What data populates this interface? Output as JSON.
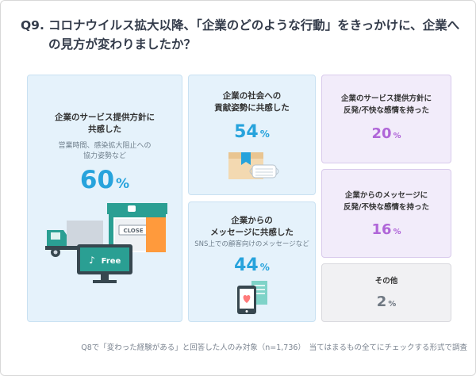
{
  "question": {
    "number": "Q9.",
    "line1": "コロナウイルス拡大以降、「企業のどのような行動」をきっかけに、企業へ",
    "line2": "の見方が変わりましたか？"
  },
  "footnote": "Q8で「変わった経験がある」と回答した人のみ対象（n=1,736）　当てはまるもの全てにチェックする形式で調査",
  "illustration": {
    "sign_closed": "CLOSE",
    "screen_free": "Free"
  },
  "chart_data": {
    "type": "table",
    "unit": "%",
    "items": [
      {
        "title_lines": [
          "企業のサービス提供方針に",
          "共感した"
        ],
        "sub_lines": [
          "営業時間、感染拡大阻止への",
          "協力姿勢など"
        ],
        "value": 60,
        "unit": "%",
        "color": "#27a3dc"
      },
      {
        "title_lines": [
          "企業の社会への",
          "貢献姿勢に共感した"
        ],
        "sub_lines": [],
        "value": 54,
        "unit": "%",
        "color": "#27a3dc"
      },
      {
        "title_lines": [
          "企業からの",
          "メッセージに共感した"
        ],
        "sub_lines": [
          "SNS上での顧客向けのメッセージなど"
        ],
        "value": 44,
        "unit": "%",
        "color": "#27a3dc"
      },
      {
        "title_lines": [
          "企業のサービス提供方針に",
          "反発/不快な感情を持った"
        ],
        "sub_lines": [],
        "value": 20,
        "unit": "%",
        "color": "#b066d8"
      },
      {
        "title_lines": [
          "企業からのメッセージに",
          "反発/不快な感情を持った"
        ],
        "sub_lines": [],
        "value": 16,
        "unit": "%",
        "color": "#b066d8"
      },
      {
        "title_lines": [
          "その他"
        ],
        "sub_lines": [],
        "value": 2,
        "unit": "%",
        "color": "#6f7882"
      }
    ]
  }
}
